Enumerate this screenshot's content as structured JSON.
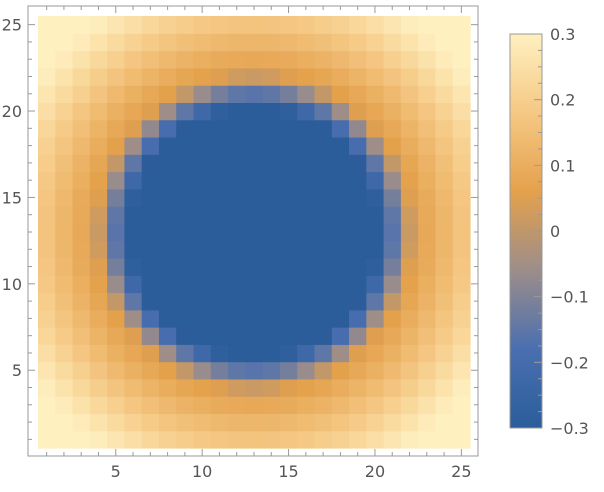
{
  "chart_data": {
    "type": "heatmap",
    "title": "",
    "xlabel": "",
    "ylabel": "",
    "grid_size": 25,
    "xlim": [
      0.5,
      25.5
    ],
    "ylim": [
      0.5,
      25.5
    ],
    "x_ticks": [
      "5",
      "10",
      "15",
      "20",
      "25"
    ],
    "y_ticks": [
      "5",
      "10",
      "15",
      "20",
      "25"
    ],
    "field": {
      "description_of_values": "value at cell (i,j) is a radial profile of distance from center (13,13)",
      "center": [
        13,
        13
      ],
      "radius_inner": 7.2,
      "radius_ring": 9.2,
      "min_value": -0.3,
      "max_value": 0.3
    },
    "colorbar": {
      "range": [
        -0.3,
        0.3
      ],
      "ticks": [
        "0.3",
        "0.2",
        "0.1",
        "0",
        "−0.1",
        "−0.2",
        "−0.3"
      ],
      "tick_values": [
        0.3,
        0.2,
        0.1,
        0,
        -0.1,
        -0.2,
        -0.3
      ],
      "gradient_colors": [
        "#2b5d9a",
        "#4a6fb0",
        "#9c8d8a",
        "#e4a14c",
        "#f5c884",
        "#fff0c0"
      ]
    }
  }
}
